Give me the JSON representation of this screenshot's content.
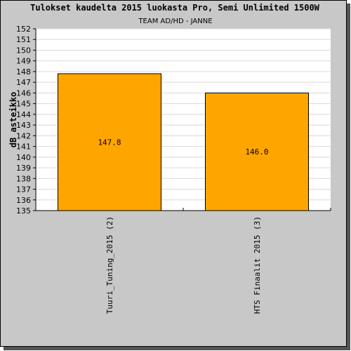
{
  "chart_data": {
    "type": "bar",
    "title": "Tulokset kaudelta 2015 luokasta Pro, Semi Unlimited 1500W",
    "subtitle": "TEAM AD/HD - JANNE",
    "ylabel": "dB asteikko",
    "xlabel": "",
    "ylim": [
      135,
      152
    ],
    "ytick_step": 1,
    "grid": true,
    "categories": [
      "Tuuri_Tuning_2015 (2)",
      "HTS Finaalit 2015 (3)"
    ],
    "values": [
      147.8,
      146.0
    ],
    "value_labels": [
      "147.8",
      "146.0"
    ],
    "colors": {
      "bar": "#ffa500",
      "bar_border": "#000000",
      "plot_bg": "#ffffff",
      "frame_bg": "#c8c8c8",
      "grid": "#d8d8d8"
    }
  }
}
